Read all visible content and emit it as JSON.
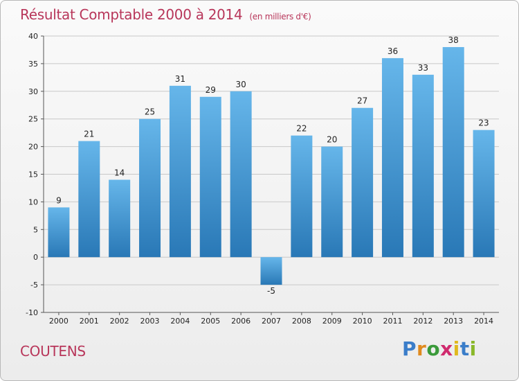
{
  "header": {
    "title": "Résultat Comptable 2000 à 2014",
    "unit": "(en milliers d'€)"
  },
  "footer": {
    "commune": "COUTENS",
    "logo_letters": [
      "P",
      "r",
      "o",
      "x",
      "i",
      "t",
      "i"
    ],
    "logo_colors": [
      "#3a7dc9",
      "#e08a1e",
      "#3a9a3a",
      "#d02a6e",
      "#e0b81e",
      "#3a7dc9",
      "#8ab82a"
    ]
  },
  "colors": {
    "title": "#b8365a",
    "bar_light": "#66b6ea",
    "bar_dark": "#2978b6",
    "grid": "#c8c8c8"
  },
  "chart_data": {
    "type": "bar",
    "title": "Résultat Comptable 2000 à 2014",
    "xlabel": "",
    "ylabel": "",
    "categories": [
      "2000",
      "2001",
      "2002",
      "2003",
      "2004",
      "2005",
      "2006",
      "2007",
      "2008",
      "2009",
      "2010",
      "2011",
      "2012",
      "2013",
      "2014"
    ],
    "values": [
      9,
      21,
      14,
      25,
      31,
      29,
      30,
      -5,
      22,
      20,
      27,
      36,
      33,
      38,
      23
    ],
    "ylim": [
      -10,
      40
    ],
    "yticks": [
      -10,
      -5,
      0,
      5,
      10,
      15,
      20,
      25,
      30,
      35,
      40
    ],
    "grid": true,
    "data_labels": true,
    "legend": "none"
  }
}
